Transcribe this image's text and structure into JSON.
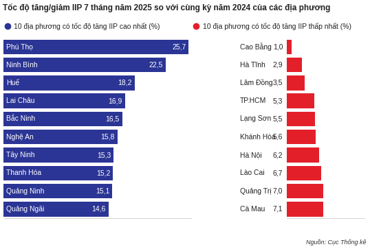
{
  "title": "Tốc độ tăng/giảm IIP 7 tháng năm 2025 so với cùng kỳ năm 2024 của các địa phương",
  "source": "Nguồn: Cục Thống kê",
  "chart_data": [
    {
      "type": "bar",
      "orientation": "horizontal",
      "title": "10 địa phương có tốc độ tăng IIP cao nhất (%)",
      "categories": [
        "Phú Thọ",
        "Ninh Bình",
        "Huế",
        "Lai Châu",
        "Bắc Ninh",
        "Nghệ An",
        "Tây Ninh",
        "Thanh Hóa",
        "Quảng Ninh",
        "Quảng Ngãi"
      ],
      "values": [
        25.7,
        22.5,
        18.2,
        16.9,
        16.5,
        15.8,
        15.3,
        15.2,
        15.1,
        14.6
      ],
      "value_labels": [
        "25,7",
        "22,5",
        "18,2",
        "16,9",
        "16,5",
        "15,8",
        "15,3",
        "15,2",
        "15,1",
        "14,6"
      ],
      "color": "#2b3595",
      "xlim": [
        0,
        26
      ],
      "xticks": [],
      "data_labels": true,
      "tick_labels": false
    },
    {
      "type": "bar",
      "orientation": "horizontal",
      "title": "10 địa phương có tốc độ tăng IIP thấp nhất (%)",
      "categories": [
        "Cao Bằng",
        "Hà Tĩnh",
        "Lâm Đồng",
        "TP.HCM",
        "Lạng Sơn",
        "Khánh Hòa",
        "Hà Nội",
        "Lào Cai",
        "Quảng Trị",
        "Cà Mau"
      ],
      "values": [
        1.0,
        2.9,
        3.5,
        5.3,
        5.5,
        5.6,
        6.2,
        6.7,
        7.0,
        7.1
      ],
      "value_labels": [
        "1,0",
        "2,9",
        "3,5",
        "5,3",
        "5,5",
        "5,6",
        "6,2",
        "6,7",
        "7,0",
        "7,1"
      ],
      "color": "#e3202a",
      "xlim": [
        0,
        15
      ],
      "xticks": [],
      "data_labels": true,
      "tick_labels": false
    }
  ]
}
